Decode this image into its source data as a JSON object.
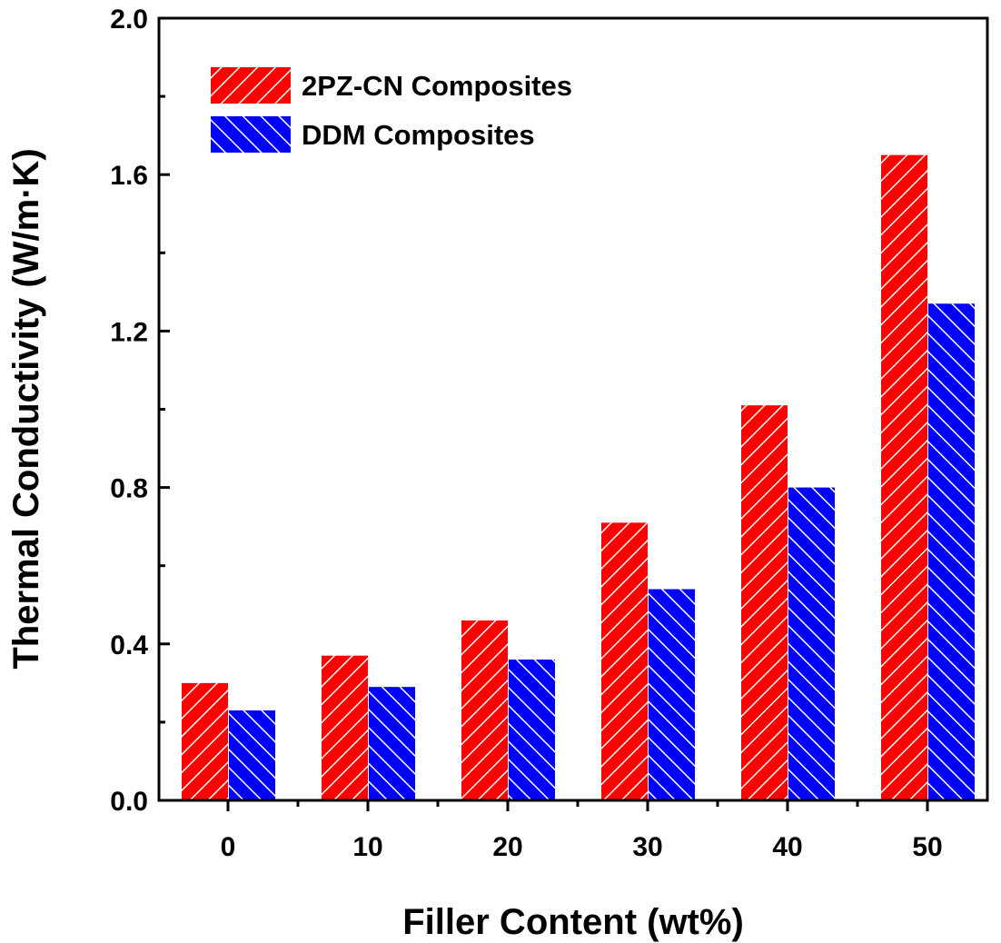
{
  "chart_data": {
    "type": "bar",
    "title": "",
    "xlabel": "Filler Content (wt%)",
    "ylabel": "Thermal Conductivity (W/m·K)",
    "categories": [
      "0",
      "10",
      "20",
      "30",
      "40",
      "50"
    ],
    "series": [
      {
        "name": "2PZ-CN Composites",
        "color": "#ff0000",
        "hatch": "forward-diagonal",
        "values": [
          0.3,
          0.37,
          0.46,
          0.71,
          1.01,
          1.65
        ]
      },
      {
        "name": "DDM Composites",
        "color": "#0000ff",
        "hatch": "backward-diagonal",
        "values": [
          0.23,
          0.29,
          0.36,
          0.54,
          0.8,
          1.27
        ]
      }
    ],
    "ylim": [
      0.0,
      2.0
    ],
    "yticks": [
      "0.0",
      "0.4",
      "0.8",
      "1.2",
      "1.6",
      "2.0"
    ],
    "grid": false,
    "legend_position": "top-left"
  }
}
